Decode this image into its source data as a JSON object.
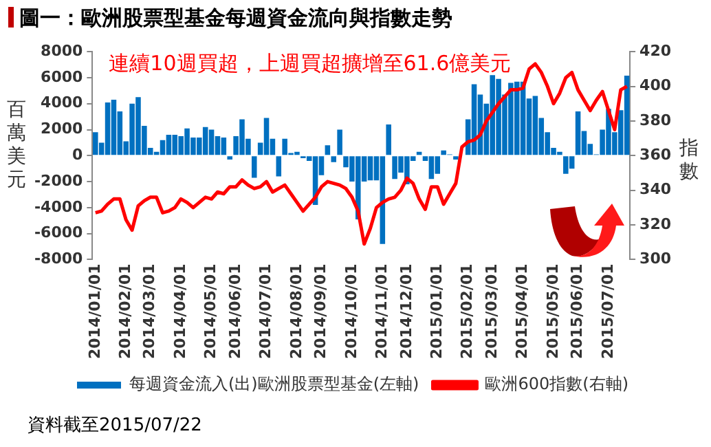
{
  "chart_data": {
    "type": "bar",
    "title": "圖一：歐洲股票型基金每週資金流向與指數走勢",
    "ylabel": "百萬美元",
    "y2label": "指數",
    "annotations": [
      "連續10週買超，上週買超擴增至61.6億美元",
      "資料截至2015/07/22"
    ],
    "categories": [
      "2014/01/01",
      null,
      null,
      null,
      null,
      "2014/02/01",
      null,
      null,
      null,
      "2014/03/01",
      null,
      null,
      null,
      null,
      "2014/04/01",
      null,
      null,
      null,
      null,
      "2014/05/01",
      null,
      null,
      null,
      "2014/06/01",
      null,
      null,
      null,
      null,
      "2014/07/01",
      null,
      null,
      null,
      null,
      "2014/08/01",
      null,
      null,
      null,
      "2014/09/01",
      null,
      null,
      null,
      null,
      "2014/10/01",
      null,
      null,
      null,
      null,
      "2014/11/01",
      null,
      null,
      null,
      "2014/12/01",
      null,
      null,
      null,
      null,
      "2015/01/01",
      null,
      null,
      null,
      null,
      "2015/02/01",
      null,
      null,
      null,
      "2015/03/01",
      null,
      null,
      null,
      null,
      "2015/04/01",
      null,
      null,
      null,
      null,
      "2015/05/01",
      null,
      null,
      null,
      "2015/06/01",
      null,
      null,
      null,
      null,
      "2015/07/01",
      null,
      null,
      null
    ],
    "series": [
      {
        "name": "每週資金流入(出)歐洲股票型基金(左軸)",
        "color": "#0070c0",
        "values": [
          1800,
          1000,
          4100,
          4300,
          3400,
          1100,
          4000,
          4500,
          2300,
          600,
          300,
          1200,
          1600,
          1600,
          1500,
          2100,
          1400,
          1400,
          2200,
          2000,
          1500,
          1400,
          -300,
          1500,
          2800,
          1300,
          -1700,
          1000,
          2900,
          1300,
          -1600,
          1300,
          200,
          300,
          -200,
          -400,
          -3800,
          -1500,
          800,
          -500,
          2000,
          -900,
          -2000,
          -4900,
          -2000,
          -1900,
          -1900,
          -6800,
          2400,
          -1800,
          -1300,
          -2200,
          -400,
          300,
          -400,
          -1800,
          -1400,
          400,
          100,
          -300,
          null,
          2800,
          5500,
          4700,
          4000,
          6200,
          5900,
          4700,
          5600,
          5700,
          5700,
          4400,
          4600,
          2900,
          1800,
          600,
          300,
          -1400,
          -1000,
          3400,
          1900,
          900,
          100,
          2000,
          3600,
          1800,
          3500,
          6160
        ]
      },
      {
        "name": "歐洲600指數(右軸)",
        "type": "line",
        "axis": "y2",
        "color": "#ff0000",
        "values": [
          327,
          328,
          332,
          335,
          335,
          323,
          317,
          331,
          334,
          336,
          336,
          327,
          328,
          330,
          335,
          333,
          330,
          333,
          336,
          335,
          339,
          338,
          342,
          342,
          346,
          343,
          341,
          342,
          345,
          339,
          341,
          343,
          338,
          333,
          328,
          332,
          336,
          342,
          345,
          344,
          343,
          341,
          336,
          328,
          309,
          318,
          330,
          333,
          335,
          336,
          340,
          347,
          344,
          335,
          329,
          342,
          342,
          332,
          338,
          344,
          365,
          368,
          369,
          372,
          380,
          385,
          390,
          394,
          398,
          398,
          399,
          410,
          413,
          408,
          400,
          390,
          396,
          405,
          408,
          398,
          392,
          386,
          392,
          397,
          386,
          375,
          398,
          400
        ]
      }
    ],
    "ylim": [
      -8000,
      8000
    ],
    "yticks": [
      -8000,
      -6000,
      -4000,
      -2000,
      0,
      2000,
      4000,
      6000,
      8000
    ],
    "y2lim": [
      300,
      420
    ],
    "y2ticks": [
      300,
      320,
      340,
      360,
      380,
      400,
      420
    ],
    "legend": "bottom",
    "marker": "none",
    "line_style": "solid"
  }
}
